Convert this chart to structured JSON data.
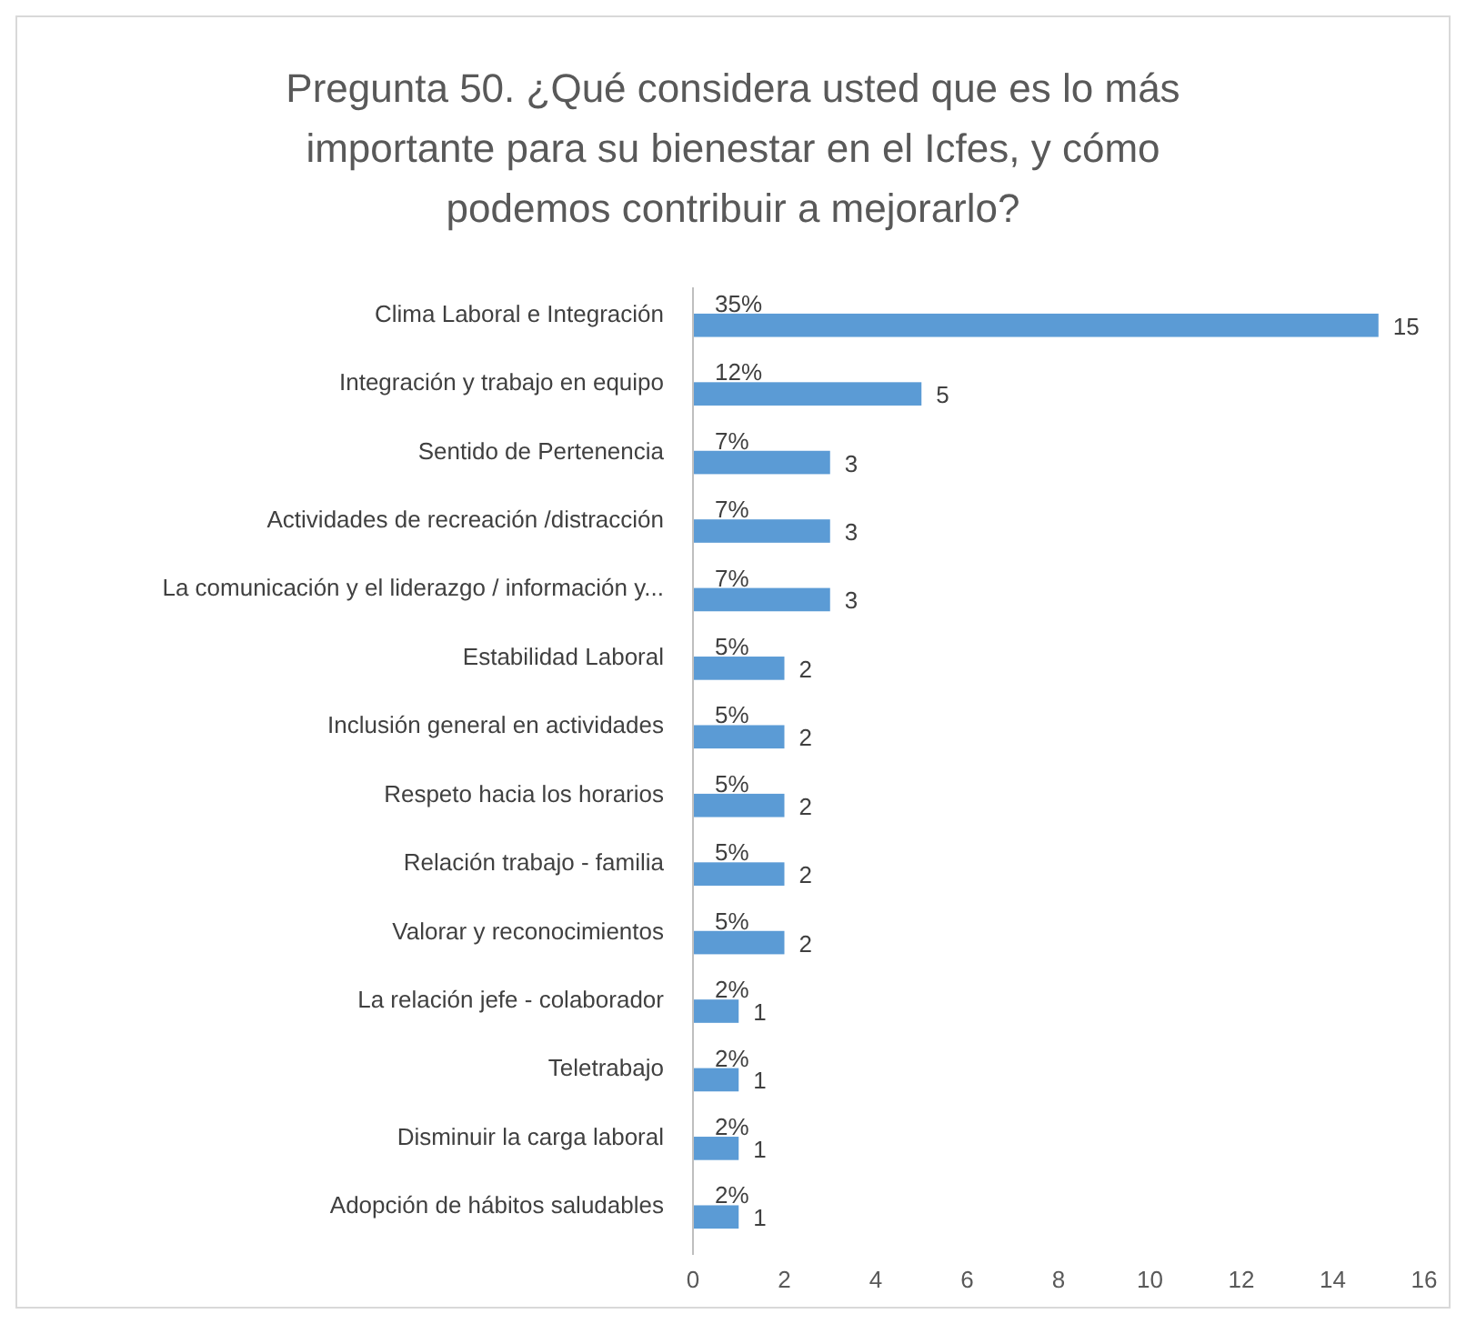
{
  "chart_data": {
    "type": "bar",
    "orientation": "horizontal",
    "title": "Pregunta 50. ¿Qué considera usted que es lo más importante para su bienestar en el Icfes, y cómo podemos contribuir a mejorarlo?",
    "categories": [
      "Clima Laboral e Integración",
      "Integración y trabajo en equipo",
      "Sentido de Pertenencia",
      "Actividades de recreación /distracción",
      "La comunicación y el liderazgo / información y...",
      "Estabilidad Laboral",
      "Inclusión general en actividades",
      "Respeto hacia los horarios",
      "Relación trabajo - familia",
      "Valorar y reconocimientos",
      "La relación jefe - colaborador",
      "Teletrabajo",
      "Disminuir la carga laboral",
      "Adopción de hábitos saludables"
    ],
    "values": [
      15,
      5,
      3,
      3,
      3,
      2,
      2,
      2,
      2,
      2,
      1,
      1,
      1,
      1
    ],
    "color": "#5b9bd5",
    "xlim": [
      0,
      16
    ],
    "xticks": [
      0,
      2,
      4,
      6,
      8,
      10,
      12,
      14,
      16
    ],
    "data_labels": true,
    "annotations": [
      {
        "text": "35%",
        "y": "Clima Laboral e Integración"
      },
      {
        "text": "12%",
        "y": "Integración y trabajo en equipo"
      },
      {
        "text": "7%",
        "y": "Sentido de Pertenencia"
      },
      {
        "text": "7%",
        "y": "Actividades de recreación /distracción"
      },
      {
        "text": "7%",
        "y": "La comunicación y el liderazgo / información y..."
      },
      {
        "text": "5%",
        "y": "Estabilidad Laboral"
      },
      {
        "text": "5%",
        "y": "Inclusión general en actividades"
      },
      {
        "text": "5%",
        "y": "Respeto hacia los horarios"
      },
      {
        "text": "5%",
        "y": "Relación trabajo - familia"
      },
      {
        "text": "5%",
        "y": "Valorar y reconocimientos"
      },
      {
        "text": "2%",
        "y": "La relación jefe - colaborador"
      },
      {
        "text": "2%",
        "y": "Teletrabajo"
      },
      {
        "text": "2%",
        "y": "Disminuir la carga laboral"
      },
      {
        "text": "2%",
        "y": "Adopción de hábitos saludables"
      }
    ]
  }
}
